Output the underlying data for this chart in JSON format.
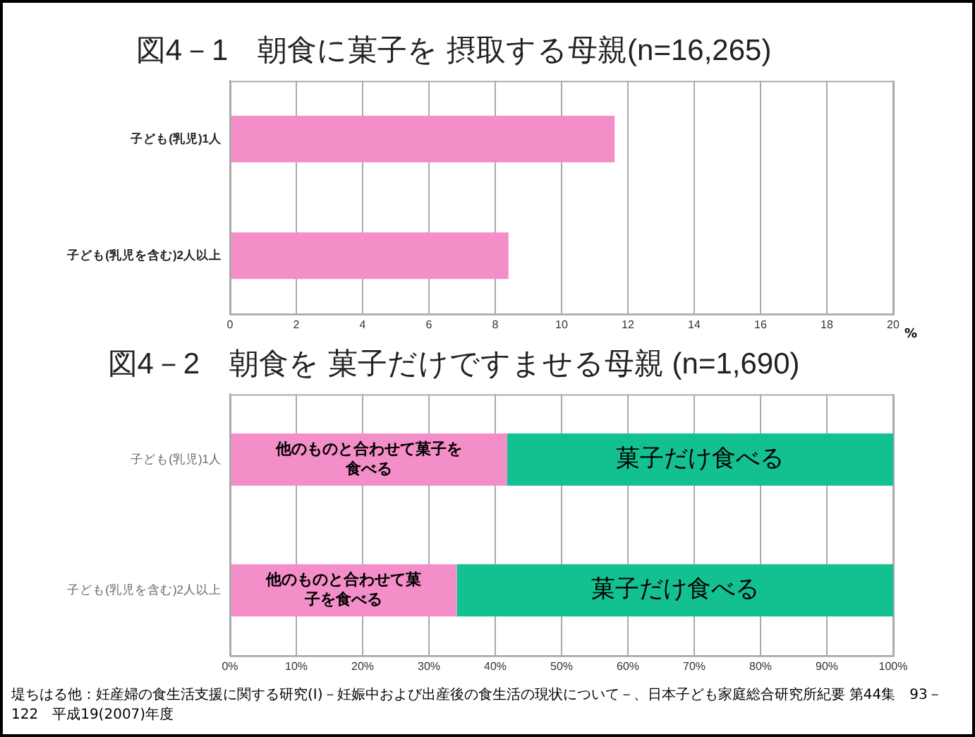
{
  "chart_data": [
    {
      "type": "bar",
      "title": "図4－1　朝食に菓子を 摂取する母親(n=16,265)",
      "orientation": "horizontal",
      "categories": [
        "子ども(乳児)1人",
        "子ども(乳児を含む)2人以上"
      ],
      "values": [
        11.6,
        8.4
      ],
      "color": "#f48ec8",
      "xlim": [
        0,
        20
      ],
      "xticks": [
        0,
        2,
        4,
        6,
        8,
        10,
        12,
        14,
        16,
        18,
        20
      ],
      "xlabel": "%",
      "grid": "x"
    },
    {
      "type": "bar",
      "title": "図4－2　朝食を 菓子だけですませる母親 (n=1,690)",
      "orientation": "horizontal",
      "stacked": true,
      "categories": [
        "子ども(乳児)1人",
        "子ども(乳児を含む)2人以上"
      ],
      "series": [
        {
          "name": "他のものと合わせて菓子を食べる",
          "color": "#f48ec8",
          "values": [
            41.8,
            34.2
          ]
        },
        {
          "name": "菓子だけ食べる",
          "color": "#13c08f",
          "values": [
            58.2,
            65.8
          ]
        }
      ],
      "xlim": [
        0,
        100
      ],
      "xticks": [
        {
          "value": 0,
          "label": "0%"
        },
        {
          "value": 10,
          "label": "10%"
        },
        {
          "value": 20,
          "label": "20%"
        },
        {
          "value": 30,
          "label": "30%"
        },
        {
          "value": 40,
          "label": "40%"
        },
        {
          "value": 50,
          "label": "50%"
        },
        {
          "value": 60,
          "label": "60%"
        },
        {
          "value": 70,
          "label": "70%"
        },
        {
          "value": 80,
          "label": "80%"
        },
        {
          "value": 90,
          "label": "90%"
        },
        {
          "value": 100,
          "label": "100%"
        }
      ],
      "grid": "x",
      "annotations": [
        "堤ちはる他：妊産婦の食生活支援に関する研究(Ⅰ)－妊娠中および出産後の食生活の現状について－、日本子ども家庭総合研究所紀要 第44集　93－122　平成19(2007)年度"
      ]
    }
  ]
}
